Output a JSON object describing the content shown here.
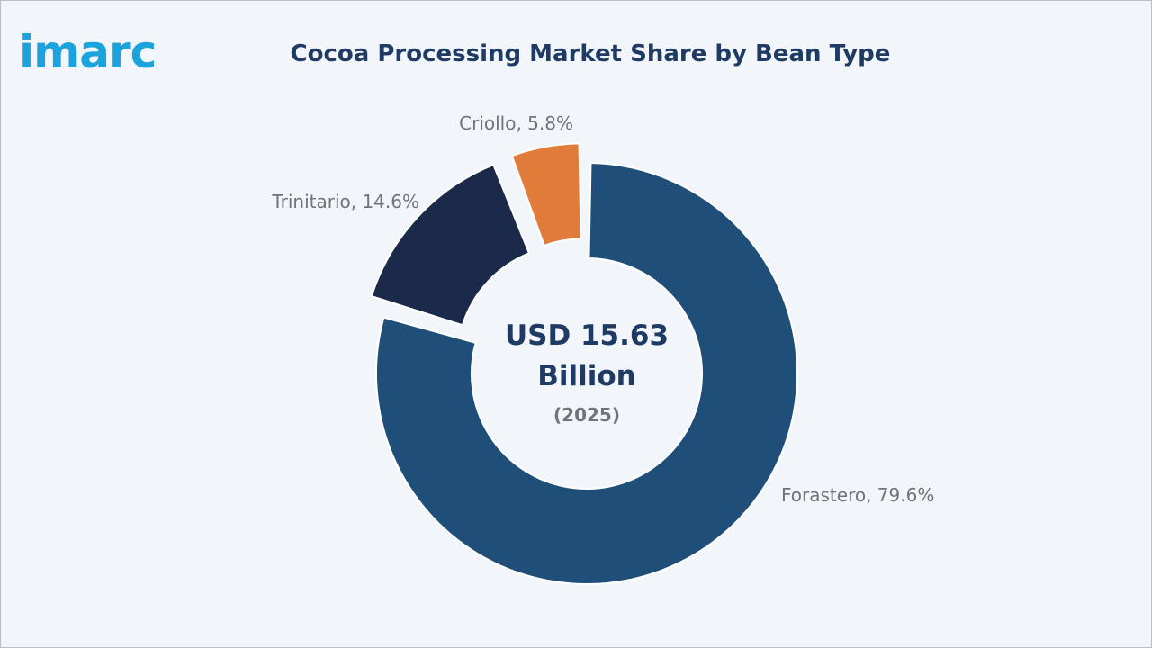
{
  "logo": {
    "text": "imarc",
    "color": "#1aa3dc"
  },
  "chart_data": {
    "type": "pie",
    "variant": "donut",
    "title": "Cocoa Processing Market Share by Bean Type",
    "center_value": "USD 15.63",
    "center_unit": "Billion",
    "center_year": "(2025)",
    "unit": "%",
    "slices": [
      {
        "name": "Forastero",
        "value": 79.6,
        "label": "Forastero, 79.6%",
        "color": "#1f4e79",
        "exploded": false
      },
      {
        "name": "Trinitario",
        "value": 14.6,
        "label": "Trinitario, 14.6%",
        "color": "#1b2a4a",
        "exploded": true
      },
      {
        "name": "Criollo",
        "value": 5.8,
        "label": "Criollo, 5.8%",
        "color": "#e07b39",
        "exploded": true
      }
    ]
  }
}
